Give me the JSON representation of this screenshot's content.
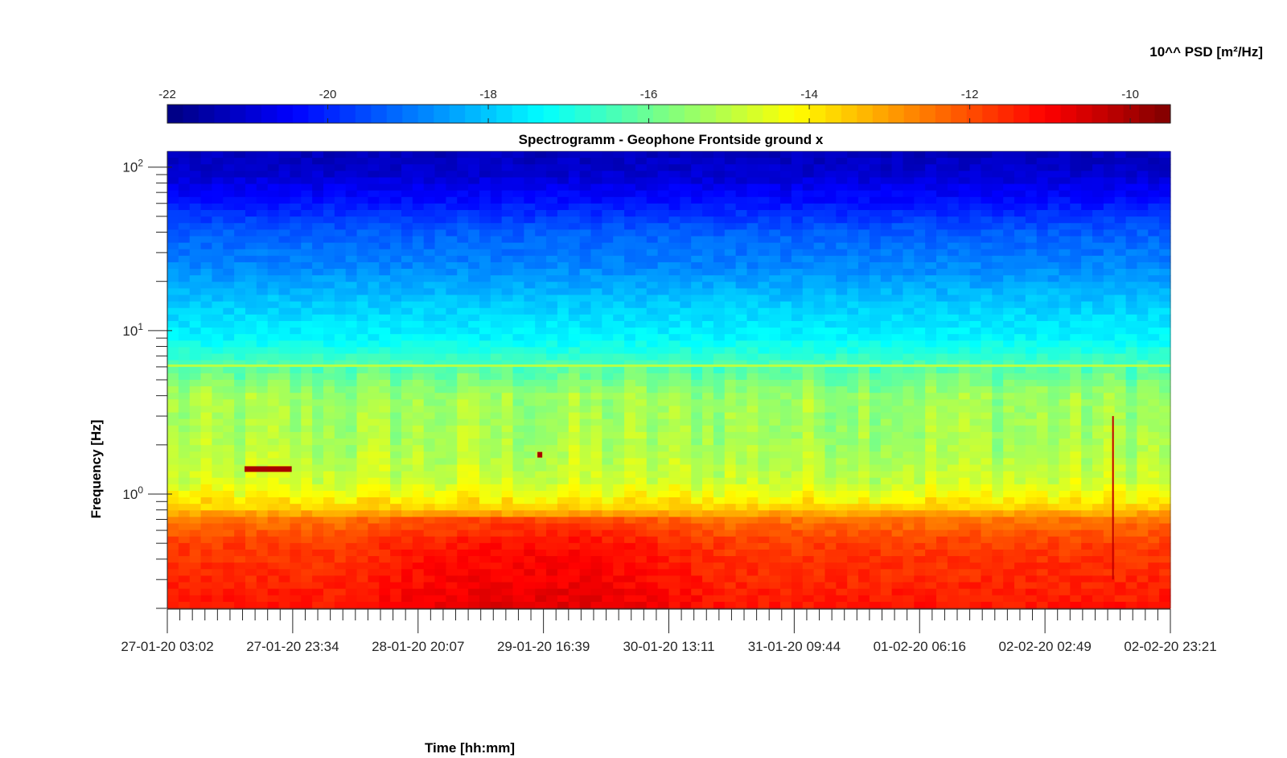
{
  "chart_data": {
    "type": "heatmap",
    "title": "Spectrogramm - Geophone Frontside ground x",
    "xlabel": "Time [hh:mm]",
    "ylabel": "Frequency [Hz]",
    "colorbar_label": "10^^ PSD [m²/Hz]",
    "colormap": "jet",
    "clim": [
      -22,
      -9.5
    ],
    "colorbar_ticks": [
      "-22",
      "-20",
      "-18",
      "-16",
      "-14",
      "-12",
      "-10"
    ],
    "colorbar_tick_values": [
      -22,
      -20,
      -18,
      -16,
      -14,
      -12,
      -10
    ],
    "x_tick_labels": [
      "27-01-20 03:02",
      "27-01-20 23:34",
      "28-01-20 20:07",
      "29-01-20 16:39",
      "30-01-20 13:11",
      "31-01-20 09:44",
      "01-02-20 06:16",
      "02-02-20 02:49",
      "02-02-20 23:21"
    ],
    "y_scale": "log",
    "ylim": [
      0.2,
      125
    ],
    "y_tick_values": [
      1,
      10,
      100
    ],
    "y_tick_bases": [
      "10",
      "10",
      "10"
    ],
    "y_tick_exponents": [
      "0",
      "1",
      "2"
    ],
    "spectrum_profile": [
      {
        "f": 125,
        "psd": -21.3
      },
      {
        "f": 90,
        "psd": -21.0
      },
      {
        "f": 60,
        "psd": -20.2
      },
      {
        "f": 40,
        "psd": -19.3
      },
      {
        "f": 25,
        "psd": -18.8
      },
      {
        "f": 15,
        "psd": -18.0
      },
      {
        "f": 9,
        "psd": -17.4
      },
      {
        "f": 6,
        "psd": -16.3
      },
      {
        "f": 4,
        "psd": -15.4
      },
      {
        "f": 2,
        "psd": -15.2
      },
      {
        "f": 1.2,
        "psd": -14.8
      },
      {
        "f": 0.85,
        "psd": -13.8
      },
      {
        "f": 0.7,
        "psd": -12.5
      },
      {
        "f": 0.5,
        "psd": -11.8
      },
      {
        "f": 0.2,
        "psd": -11.3
      }
    ]
  }
}
